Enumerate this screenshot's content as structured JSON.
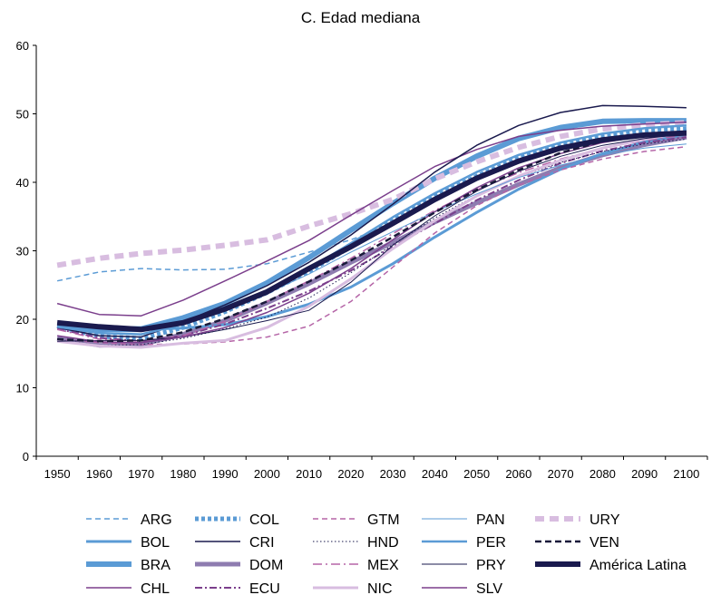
{
  "chart_data": {
    "type": "line",
    "title": "C. Edad mediana",
    "xlabel": "",
    "ylabel": "",
    "ylim": [
      0,
      60
    ],
    "yticks": [
      "0",
      "10",
      "20",
      "30",
      "40",
      "50",
      "60"
    ],
    "x": [
      "1950",
      "1960",
      "1970",
      "1980",
      "1990",
      "2000",
      "2010",
      "2020",
      "2030",
      "2040",
      "2050",
      "2060",
      "2070",
      "2080",
      "2090",
      "2100"
    ],
    "grid": false,
    "legend_position": "bottom",
    "series": [
      {
        "name": "ARG",
        "color": "#5b9bd5",
        "style": "dashed",
        "width": 1.5,
        "values": [
          25.6,
          26.9,
          27.4,
          27.2,
          27.3,
          28.1,
          29.8,
          31.6,
          33.9,
          37.5,
          40.7,
          43.0,
          44.8,
          46.2,
          47.1,
          47.4
        ]
      },
      {
        "name": "BOL",
        "color": "#5b9bd5",
        "style": "solid",
        "width": 3,
        "values": [
          19.3,
          18.9,
          18.5,
          18.7,
          19.2,
          20.4,
          22.2,
          24.7,
          28.1,
          32.0,
          35.6,
          39.0,
          41.9,
          44.2,
          45.9,
          47.0
        ]
      },
      {
        "name": "BRA",
        "color": "#5b9bd5",
        "style": "solid",
        "width": 6,
        "values": [
          19.2,
          18.6,
          18.6,
          20.2,
          22.3,
          25.3,
          29.0,
          33.0,
          36.9,
          40.6,
          43.8,
          46.4,
          48.0,
          48.9,
          49.0,
          49.0
        ]
      },
      {
        "name": "CHL",
        "color": "#7b3f8c",
        "style": "solid",
        "width": 1.5,
        "values": [
          22.3,
          20.7,
          20.5,
          22.8,
          25.6,
          28.5,
          31.5,
          35.2,
          38.8,
          42.3,
          44.8,
          46.7,
          47.6,
          48.2,
          48.5,
          48.8
        ]
      },
      {
        "name": "COL",
        "color": "#5b9bd5",
        "style": "dotted-thick",
        "width": 5,
        "values": [
          19.0,
          17.5,
          17.2,
          18.8,
          21.1,
          23.9,
          27.0,
          30.6,
          34.4,
          37.9,
          40.9,
          43.5,
          45.5,
          46.8,
          47.6,
          47.8
        ]
      },
      {
        "name": "CRI",
        "color": "#1a1a4e",
        "style": "solid",
        "width": 1.5,
        "values": [
          18.8,
          17.6,
          17.4,
          19.6,
          22.1,
          24.9,
          28.3,
          32.3,
          36.8,
          41.5,
          45.4,
          48.3,
          50.2,
          51.2,
          51.1,
          50.9
        ]
      },
      {
        "name": "DOM",
        "color": "#8e7cb0",
        "style": "solid",
        "width": 5,
        "values": [
          17.2,
          16.2,
          16.3,
          17.8,
          19.8,
          22.4,
          25.2,
          28.3,
          31.2,
          34.2,
          37.0,
          39.7,
          42.1,
          44.0,
          45.5,
          46.6
        ]
      },
      {
        "name": "ECU",
        "color": "#7b3f8c",
        "style": "dashdot",
        "width": 2,
        "values": [
          18.6,
          17.3,
          16.8,
          17.6,
          19.3,
          21.6,
          24.1,
          27.1,
          30.6,
          34.0,
          37.4,
          40.3,
          42.8,
          44.6,
          45.8,
          46.6
        ]
      },
      {
        "name": "GTM",
        "color": "#b565a7",
        "style": "dashed",
        "width": 1.5,
        "values": [
          17.1,
          16.6,
          16.3,
          16.4,
          16.7,
          17.4,
          19.0,
          22.6,
          27.6,
          32.6,
          36.6,
          39.6,
          41.8,
          43.4,
          44.5,
          45.2
        ]
      },
      {
        "name": "HND",
        "color": "#1a1a4e",
        "style": "dotted",
        "width": 1,
        "values": [
          17.0,
          16.2,
          16.3,
          17.2,
          18.6,
          20.3,
          23.1,
          26.8,
          30.9,
          34.8,
          38.1,
          40.8,
          42.9,
          44.5,
          45.6,
          46.3
        ]
      },
      {
        "name": "MEX",
        "color": "#b565a7",
        "style": "dashdot-long",
        "width": 1.5,
        "values": [
          18.5,
          17.1,
          16.8,
          17.6,
          19.7,
          22.6,
          25.6,
          28.9,
          32.5,
          35.9,
          38.9,
          41.4,
          43.4,
          45.0,
          46.1,
          46.9
        ]
      },
      {
        "name": "NIC",
        "color": "#d8bde0",
        "style": "solid",
        "width": 3,
        "values": [
          16.8,
          16.1,
          15.9,
          16.5,
          16.9,
          18.8,
          21.9,
          25.9,
          30.3,
          34.4,
          38.0,
          40.9,
          43.2,
          45.0,
          46.3,
          47.3
        ]
      },
      {
        "name": "PAN",
        "color": "#5b9bd5",
        "style": "solid",
        "width": 1,
        "values": [
          19.3,
          18.2,
          18.2,
          19.3,
          21.3,
          23.8,
          26.6,
          29.8,
          32.8,
          35.7,
          38.3,
          40.7,
          42.5,
          44.0,
          45.0,
          45.6
        ]
      },
      {
        "name": "PER",
        "color": "#5b9bd5",
        "style": "solid",
        "width": 2.5,
        "values": [
          18.9,
          18.0,
          17.8,
          19.3,
          21.5,
          24.2,
          27.4,
          31.1,
          34.9,
          38.4,
          41.5,
          44.0,
          45.8,
          47.1,
          47.9,
          48.3
        ]
      },
      {
        "name": "PRY",
        "color": "#1a1a4e",
        "style": "solid",
        "width": 1,
        "values": [
          16.8,
          16.9,
          16.9,
          17.4,
          18.5,
          19.8,
          21.3,
          25.4,
          30.8,
          35.1,
          38.7,
          41.6,
          43.8,
          45.4,
          46.4,
          47.1
        ]
      },
      {
        "name": "SLV",
        "color": "#7b3f8c",
        "style": "solid",
        "width": 1.5,
        "values": [
          17.6,
          16.7,
          16.6,
          17.4,
          18.8,
          21.0,
          23.8,
          27.4,
          31.6,
          35.7,
          39.2,
          42.1,
          44.2,
          45.8,
          46.8,
          47.4
        ]
      },
      {
        "name": "URY",
        "color": "#d8bde0",
        "style": "dashed-thick",
        "width": 6,
        "values": [
          27.9,
          28.9,
          29.6,
          30.1,
          30.8,
          31.6,
          33.6,
          35.4,
          37.5,
          40.5,
          43.0,
          45.1,
          46.7,
          47.8,
          48.4,
          48.7
        ]
      },
      {
        "name": "VEN",
        "color": "#1a1a3a",
        "style": "dashed-dark",
        "width": 2.5,
        "values": [
          17.1,
          16.8,
          16.9,
          18.1,
          20.1,
          22.6,
          25.5,
          28.6,
          32.0,
          35.6,
          38.9,
          41.8,
          44.3,
          46.0,
          46.9,
          47.4
        ]
      },
      {
        "name": "América Latina",
        "color": "#1a1a4e",
        "style": "solid",
        "width": 6,
        "values": [
          19.5,
          18.9,
          18.5,
          19.5,
          21.5,
          24.0,
          27.4,
          30.6,
          34.0,
          37.5,
          40.6,
          43.1,
          45.0,
          46.2,
          46.9,
          47.2
        ]
      }
    ],
    "legend_rows": [
      [
        "ARG",
        "COL",
        "GTM",
        "PAN",
        "URY"
      ],
      [
        "BOL",
        "CRI",
        "HND",
        "PER",
        "VEN"
      ],
      [
        "BRA",
        "DOM",
        "MEX",
        "PRY",
        "América Latina"
      ],
      [
        "CHL",
        "ECU",
        "NIC",
        "SLV"
      ]
    ]
  }
}
